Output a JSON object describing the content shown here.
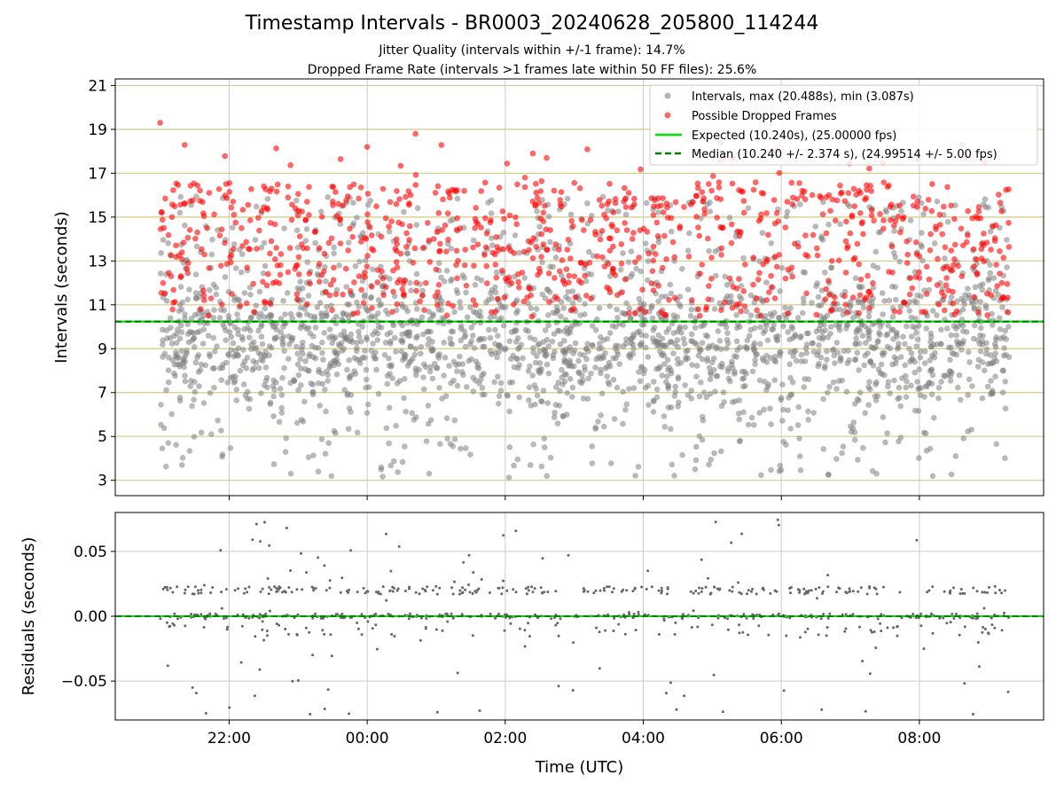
{
  "title": "Timestamp Intervals - BR0003_20240628_205800_114244",
  "subtitle_1": "Jitter Quality (intervals within +/-1 frame): 14.7%",
  "subtitle_2": "Dropped Frame Rate (intervals >1 frames late within 50 FF files): 25.6%",
  "colors": {
    "intervals": "#808080",
    "dropped": "#ff0000",
    "expected": "#00e000",
    "median": "#008000",
    "hgrid_top": "#d6c98a",
    "grid": "#cccccc"
  },
  "chart_data": [
    {
      "type": "scatter",
      "ylabel": "Intervals (seconds)",
      "xlim_hours": [
        20.35,
        33.8
      ],
      "ylim": [
        2.3,
        21.3
      ],
      "x_range_hours": [
        21.0,
        33.3
      ],
      "y_ticks": [
        "3",
        "5",
        "7",
        "9",
        "11",
        "13",
        "15",
        "17",
        "19",
        "21"
      ],
      "y_tick_values": [
        3,
        5,
        7,
        9,
        11,
        13,
        15,
        17,
        19,
        21
      ],
      "grid": true,
      "legend_position": "top-right",
      "series": [
        {
          "name": "Intervals, max (20.488s), min (3.087s)",
          "kind": "points",
          "max": 20.488,
          "min": 3.087,
          "approx_center": 9.2
        },
        {
          "name": "Possible Dropped Frames",
          "kind": "points",
          "approx_range": [
            10.4,
            19.3
          ]
        }
      ],
      "reference_lines": [
        {
          "name": "Expected (10.240s), (25.00000 fps)",
          "value": 10.24,
          "style": "solid"
        },
        {
          "name": "Median (10.240 +/- 2.374 s), (24.99514 +/- 5.00 fps)",
          "value": 10.24,
          "style": "dashed"
        }
      ]
    },
    {
      "type": "scatter",
      "xlabel": "Time (UTC)",
      "ylabel": "Residuals (seconds)",
      "xlim_hours": [
        20.35,
        33.8
      ],
      "ylim": [
        -0.08,
        0.08
      ],
      "x_ticks": [
        "22:00",
        "00:00",
        "02:00",
        "04:00",
        "06:00",
        "08:00"
      ],
      "x_tick_hours": [
        22,
        24,
        26,
        28,
        30,
        32
      ],
      "y_ticks": [
        "−0.05",
        "0.00",
        "0.05"
      ],
      "y_tick_values": [
        -0.05,
        0.0,
        0.05
      ],
      "grid": true,
      "reference_lines": [
        {
          "name": "zero",
          "value": 0.0,
          "style": "dashed"
        }
      ]
    }
  ],
  "legend": {
    "items": [
      "Intervals, max (20.488s), min (3.087s)",
      "Possible Dropped Frames",
      "Expected (10.240s), (25.00000 fps)",
      "Median (10.240 +/- 2.374 s), (24.99514 +/- 5.00 fps)"
    ]
  }
}
